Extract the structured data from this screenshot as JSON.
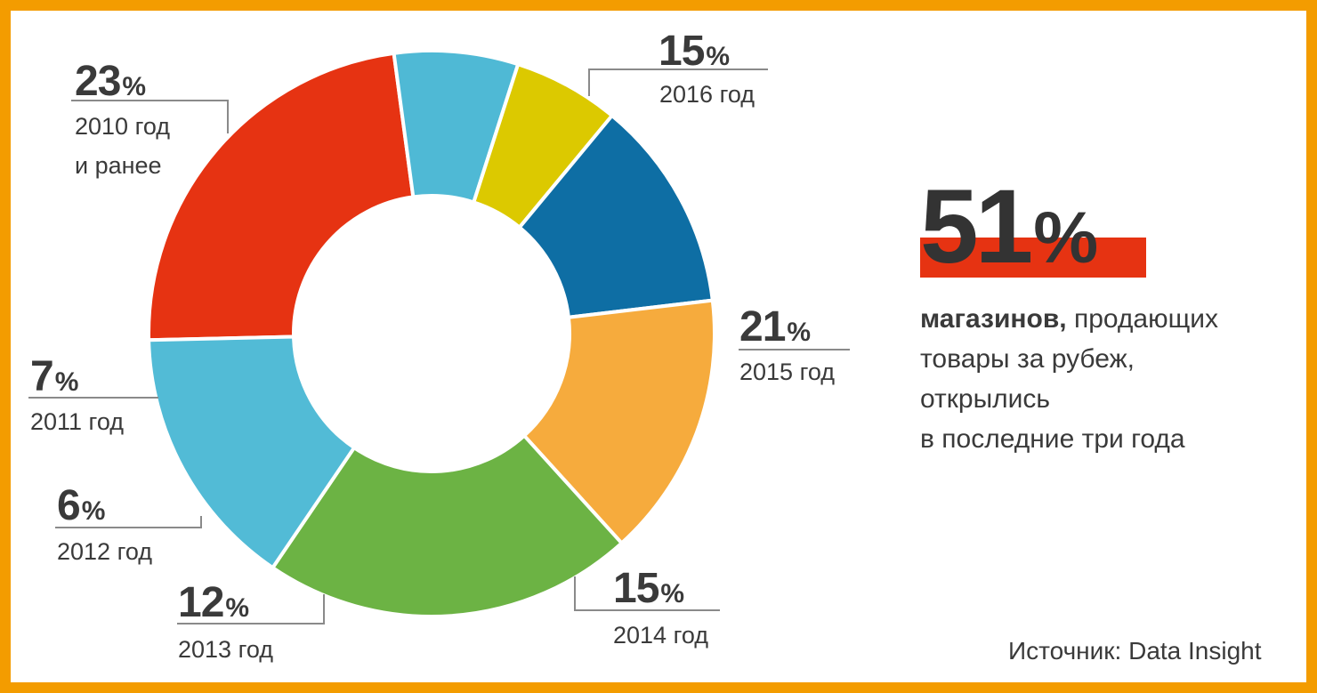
{
  "chart_data": {
    "type": "pie",
    "variant": "donut",
    "categories": [
      "2010 год и ранее",
      "2011 год",
      "2012 год",
      "2013 год",
      "2014 год",
      "2015 год",
      "2016 год"
    ],
    "values": [
      23,
      7,
      6,
      12,
      15,
      21,
      15
    ],
    "unit": "%",
    "colors": [
      "#e63312",
      "#4fb9d5",
      "#dcc900",
      "#0e6ea4",
      "#f6ab3d",
      "#6cb344",
      "#52bbd6"
    ],
    "labels": {
      "l2010": {
        "value": "23",
        "year": "2010 год",
        "year2": "и ранее"
      },
      "l2011": {
        "value": "7",
        "year": "2011 год"
      },
      "l2012": {
        "value": "6",
        "year": "2012 год"
      },
      "l2013": {
        "value": "12",
        "year": "2013 год"
      },
      "l2014": {
        "value": "15",
        "year": "2014 год"
      },
      "l2015": {
        "value": "21",
        "year": "2015 год"
      },
      "l2016": {
        "value": "15",
        "year": "2016 год"
      }
    },
    "percent_sign": "%"
  },
  "highlight": {
    "value": "51",
    "sign": "%",
    "bar_color": "#e63312",
    "caption_bold": "магазинов,",
    "caption_rest": " продающих",
    "caption_line2": "товары за рубеж,",
    "caption_line3": "открылись",
    "caption_line4": "в последние три года"
  },
  "source": "Источник: Data Insight",
  "frame_color": "#f39c00"
}
